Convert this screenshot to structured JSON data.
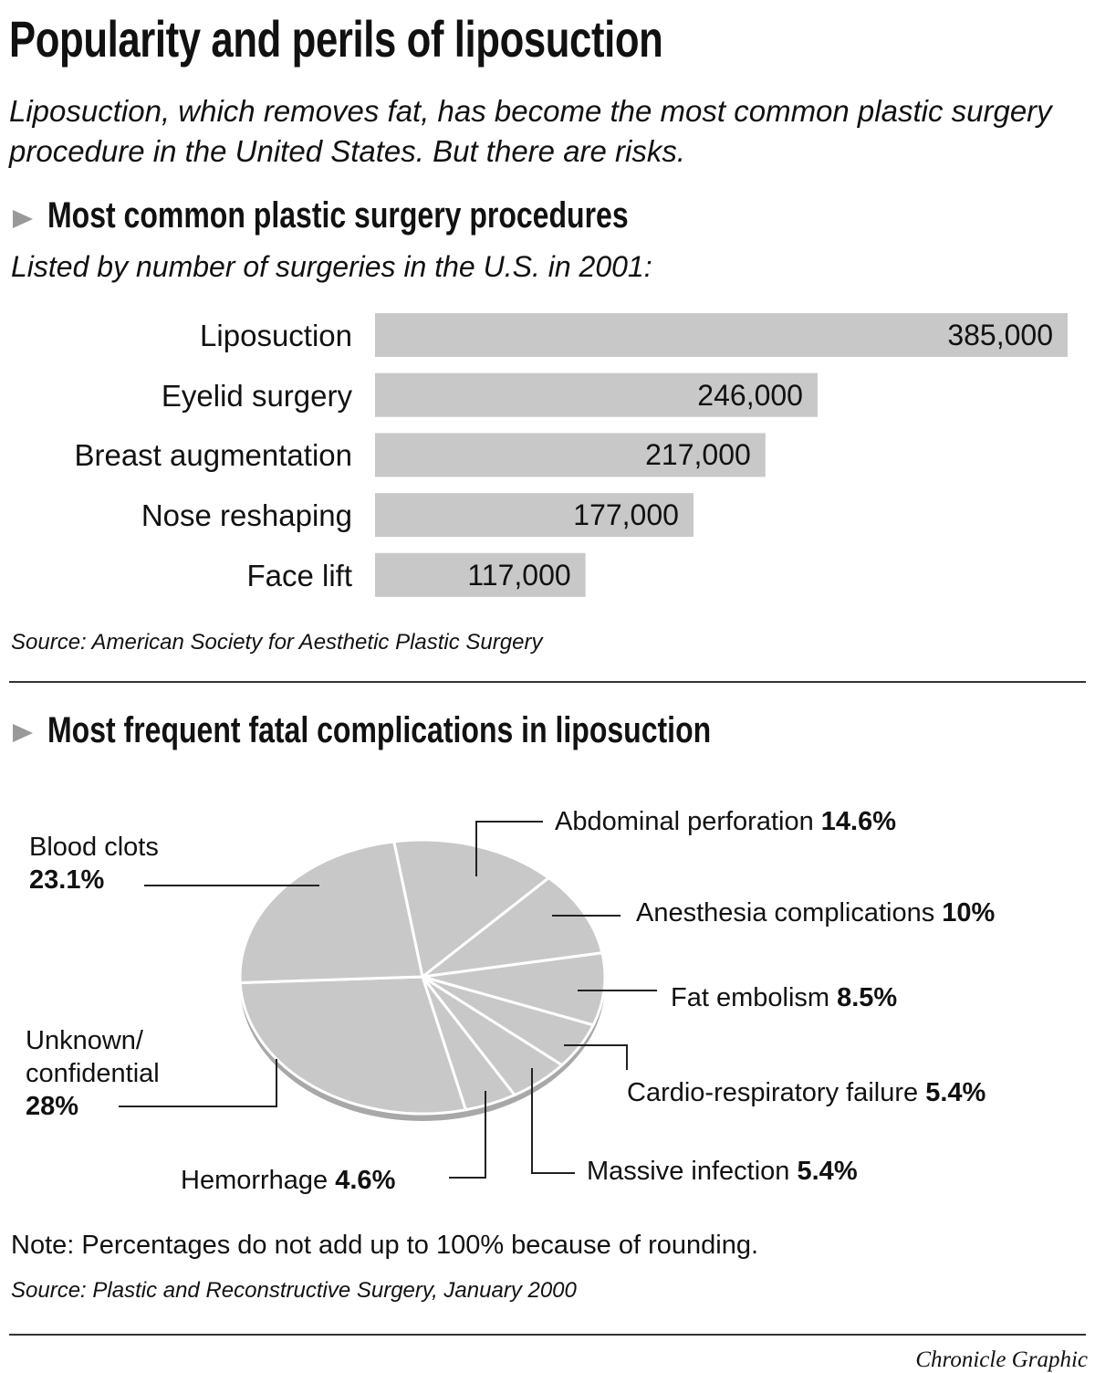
{
  "title": "Popularity and perils of liposuction",
  "subtitle": "Liposuction, which removes fat, has become the most common plastic surgery procedure in the United States. But there are risks.",
  "credit": "Chronicle Graphic",
  "chart_data": [
    {
      "type": "bar",
      "orientation": "horizontal",
      "title": "Most common plastic surgery procedures",
      "subtitle": "Listed by number of surgeries in the U.S. in 2001:",
      "categories": [
        "Liposuction",
        "Eyelid surgery",
        "Breast augmentation",
        "Nose reshaping",
        "Face lift"
      ],
      "values": [
        385000,
        246000,
        217000,
        177000,
        117000
      ],
      "value_labels": [
        "385,000",
        "246,000",
        "217,000",
        "177,000",
        "117,000"
      ],
      "color": "#c8c8c8",
      "source": "Source: American Society for Aesthetic Plastic Surgery"
    },
    {
      "type": "pie",
      "title": "Most frequent fatal complications in liposuction",
      "categories": [
        "Abdominal perforation",
        "Anesthesia complications",
        "Fat embolism",
        "Cardio-respiratory failure",
        "Massive infection",
        "Hemorrhage",
        "Unknown/ confidential",
        "Blood clots"
      ],
      "values": [
        14.6,
        10,
        8.5,
        5.4,
        5.4,
        4.6,
        28,
        23.1
      ],
      "value_labels": [
        "14.6%",
        "10%",
        "8.5%",
        "5.4%",
        "5.4%",
        "4.6%",
        "28%",
        "23.1%"
      ],
      "color": "#c8c8c8",
      "note": "Note: Percentages do not add up to 100% because of rounding.",
      "source": "Source: Plastic and Reconstructive Surgery, January 2000"
    }
  ]
}
